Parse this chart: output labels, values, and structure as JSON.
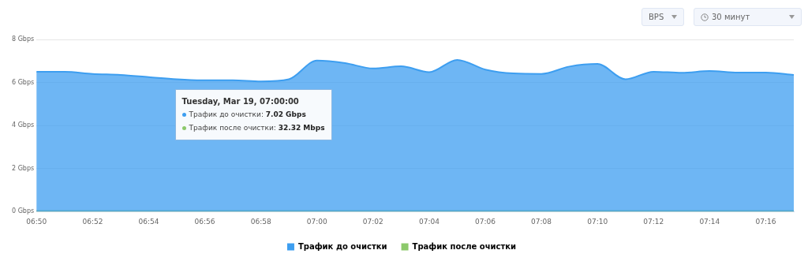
{
  "chart_data": {
    "type": "area",
    "annotations": [
      "BPS",
      "30 минут",
      "Tuesday, Mar 19, 07:00:00",
      "Трафик до очистки: 7.02 Gbps",
      "Трафик после очистки: 32.32 Mbps"
    ],
    "x": [
      6.8333,
      6.85,
      6.8667,
      6.8833,
      6.9,
      6.9167,
      6.9333,
      6.95,
      6.9667,
      6.9833,
      7,
      7.0167,
      7.0333,
      7.05,
      7.0667,
      7.0833,
      7.1,
      7.1167,
      7.1333,
      7.15,
      7.1667,
      7.1833,
      7.2,
      7.2167,
      7.2333,
      7.25,
      7.2667,
      7.2833
    ],
    "series": [
      {
        "name": "Трафик до очистки",
        "color": "#3d9ef0",
        "values": [
          6.5,
          6.5,
          6.4,
          6.35,
          6.25,
          6.15,
          6.1,
          6.1,
          6.05,
          6.15,
          7.02,
          6.9,
          6.65,
          6.75,
          6.48,
          7.05,
          6.6,
          6.42,
          6.4,
          6.74,
          6.86,
          6.15,
          6.5,
          6.45,
          6.53,
          6.46,
          6.46,
          6.35
        ]
      },
      {
        "name": "Трафик после очистки",
        "color": "#8cc96b",
        "values": [
          0.03,
          0.03,
          0.03,
          0.03,
          0.03,
          0.03,
          0.03,
          0.03,
          0.03,
          0.03,
          0.03,
          0.03,
          0.03,
          0.03,
          0.03,
          0.03,
          0.03,
          0.03,
          0.03,
          0.03,
          0.03,
          0.03,
          0.03,
          0.03,
          0.03,
          0.03,
          0.03,
          0.03
        ]
      }
    ],
    "xlim": [
      6.8333,
      7.2833
    ],
    "xticks": [
      {
        "value": 6.8333,
        "label": "06:50"
      },
      {
        "value": 6.8667,
        "label": "06:52"
      },
      {
        "value": 6.9,
        "label": "06:54"
      },
      {
        "value": 6.9333,
        "label": "06:56"
      },
      {
        "value": 6.9667,
        "label": "06:58"
      },
      {
        "value": 7,
        "label": "07:00"
      },
      {
        "value": 7.0333,
        "label": "07:02"
      },
      {
        "value": 7.0667,
        "label": "07:04"
      },
      {
        "value": 7.1,
        "label": "07:06"
      },
      {
        "value": 7.1333,
        "label": "07:08"
      },
      {
        "value": 7.1667,
        "label": "07:10"
      },
      {
        "value": 7.2,
        "label": "07:12"
      },
      {
        "value": 7.2333,
        "label": "07:14"
      },
      {
        "value": 7.2667,
        "label": "07:16"
      }
    ],
    "ylim": [
      0,
      8
    ],
    "yticks": [
      {
        "value": 0,
        "label": "0 Gbps"
      },
      {
        "value": 2,
        "label": "2 Gbps"
      },
      {
        "value": 4,
        "label": "4 Gbps"
      },
      {
        "value": 6,
        "label": "6 Gbps"
      },
      {
        "value": 8,
        "label": "8 Gbps"
      }
    ],
    "grid": "y",
    "legend": "bottom",
    "marker": "none",
    "line_style": "solid"
  }
}
